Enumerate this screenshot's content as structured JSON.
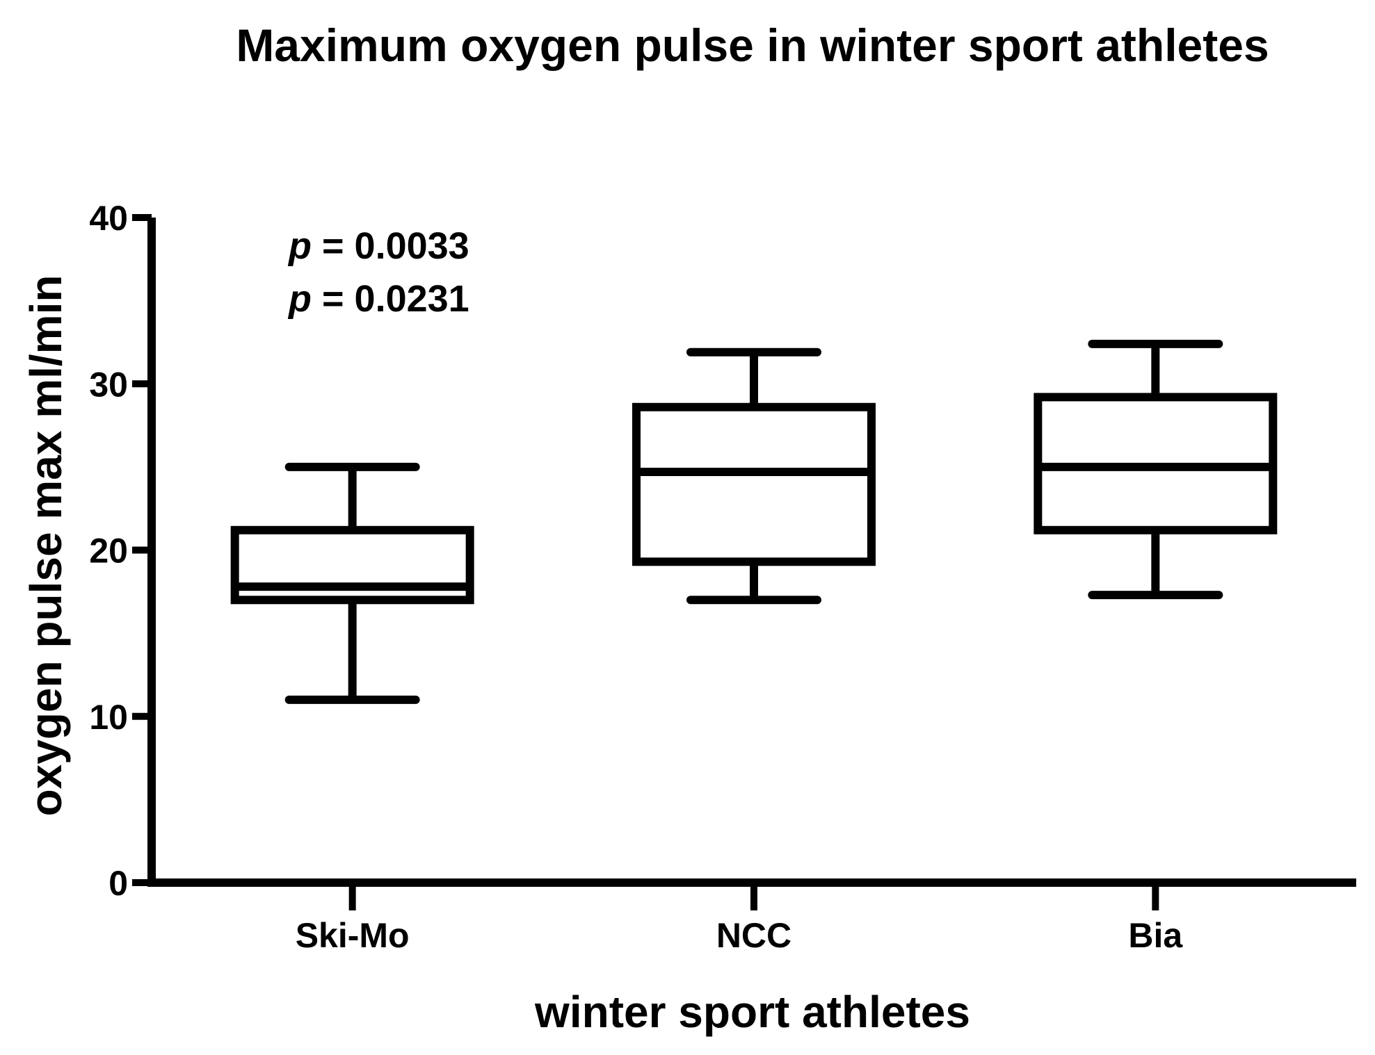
{
  "chart_data": {
    "type": "box",
    "title": "Maximum oxygen pulse in winter sport athletes",
    "xlabel": "winter sport athletes",
    "ylabel": "oxygen pulse  max  ml/min",
    "ylim": [
      0,
      40
    ],
    "yticks": [
      "0",
      "10",
      "20",
      "30",
      "40"
    ],
    "grid": false,
    "categories": [
      "Ski-Mo",
      "NCC",
      "Bia"
    ],
    "boxes": [
      {
        "min": 11.0,
        "q1": 17.0,
        "median": 17.8,
        "q3": 21.2,
        "max": 25.0
      },
      {
        "min": 17.0,
        "q1": 19.3,
        "median": 24.7,
        "q3": 28.6,
        "max": 31.9
      },
      {
        "min": 17.3,
        "q1": 21.2,
        "median": 25.0,
        "q3": 29.2,
        "max": 32.4
      }
    ],
    "annotations": [
      {
        "prefix": "p",
        "text": " = 0.0033"
      },
      {
        "prefix": "p",
        "text": " = 0.0231"
      }
    ]
  }
}
